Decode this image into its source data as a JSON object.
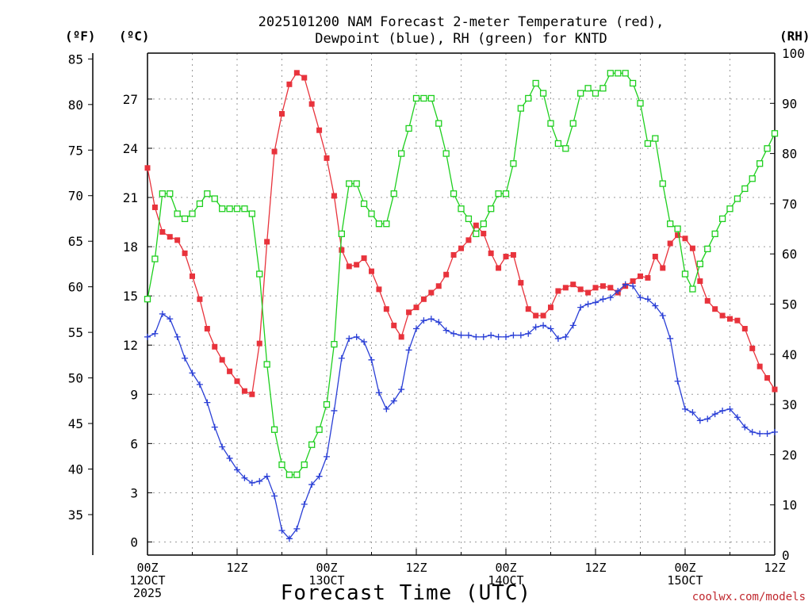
{
  "header": {
    "title_line1": "2025101200 NAM Forecast 2-meter Temperature (red),",
    "title_line2": "Dewpoint (blue), RH (green) for KNTD",
    "unit_f": "(ºF)",
    "unit_c": "(ºC)",
    "unit_rh": "(RH)"
  },
  "footer": {
    "xlabel": "Forecast Time (UTC)",
    "credit": "coolwx.com/models"
  },
  "colors": {
    "temperature": "#e8333c",
    "dewpoint": "#2a3fd6",
    "rh": "#1ecf1e",
    "grid": "#9a9a9a"
  },
  "chart_data": {
    "type": "line",
    "x": [
      0,
      1,
      2,
      3,
      4,
      5,
      6,
      7,
      8,
      9,
      10,
      11,
      12,
      13,
      14,
      15,
      16,
      17,
      18,
      19,
      20,
      21,
      22,
      23,
      24,
      25,
      26,
      27,
      28,
      29,
      30,
      31,
      32,
      33,
      34,
      35,
      36,
      37,
      38,
      39,
      40,
      41,
      42,
      43,
      44,
      45,
      46,
      47,
      48,
      49,
      50,
      51,
      52,
      53,
      54,
      55,
      56,
      57,
      58,
      59,
      60,
      61,
      62,
      63,
      64,
      65,
      66,
      67,
      68,
      69,
      70,
      71,
      72,
      73,
      74,
      75,
      76,
      77,
      78,
      79,
      80,
      81,
      82,
      83,
      84
    ],
    "xlim": [
      0,
      84
    ],
    "x_ticks": [
      {
        "x": 0,
        "line1": "00Z",
        "line2": "12OCT",
        "line3": "2025"
      },
      {
        "x": 12,
        "line1": "12Z",
        "line2": "",
        "line3": ""
      },
      {
        "x": 24,
        "line1": "00Z",
        "line2": "13OCT",
        "line3": ""
      },
      {
        "x": 36,
        "line1": "12Z",
        "line2": "",
        "line3": ""
      },
      {
        "x": 48,
        "line1": "00Z",
        "line2": "14OCT",
        "line3": ""
      },
      {
        "x": 60,
        "line1": "12Z",
        "line2": "",
        "line3": ""
      },
      {
        "x": 72,
        "line1": "00Z",
        "line2": "15OCT",
        "line3": ""
      },
      {
        "x": 84,
        "line1": "12Z",
        "line2": "",
        "line3": ""
      }
    ],
    "ylim_c": [
      -0.8,
      29.8
    ],
    "yticks_c": [
      0,
      3,
      6,
      9,
      12,
      15,
      18,
      21,
      24,
      27
    ],
    "ylim_f": [
      30.56,
      85.64
    ],
    "yticks_f": [
      35,
      40,
      45,
      50,
      55,
      60,
      65,
      70,
      75,
      80,
      85
    ],
    "ylim_rh": [
      0,
      100
    ],
    "yticks_rh": [
      0,
      10,
      20,
      30,
      40,
      50,
      60,
      70,
      80,
      90,
      100
    ],
    "grid": true,
    "series": [
      {
        "key": "temperature",
        "axis": "c",
        "marker": "filled-square",
        "values": [
          22.8,
          20.4,
          18.9,
          18.6,
          18.4,
          17.6,
          16.2,
          14.8,
          13.0,
          11.9,
          11.1,
          10.4,
          9.8,
          9.2,
          9.0,
          12.1,
          18.3,
          23.8,
          26.1,
          27.9,
          28.6,
          28.3,
          26.7,
          25.1,
          23.4,
          21.1,
          17.8,
          16.8,
          16.9,
          17.3,
          16.5,
          15.4,
          14.2,
          13.2,
          12.5,
          14.0,
          14.3,
          14.8,
          15.2,
          15.6,
          16.3,
          17.5,
          17.9,
          18.4,
          19.3,
          18.8,
          17.6,
          16.7,
          17.4,
          17.5,
          15.8,
          14.2,
          13.8,
          13.8,
          14.3,
          15.3,
          15.5,
          15.7,
          15.4,
          15.2,
          15.5,
          15.6,
          15.5,
          15.2,
          15.6,
          15.9,
          16.2,
          16.1,
          17.4,
          16.7,
          18.2,
          18.7,
          18.5,
          17.9,
          15.9,
          14.7,
          14.2,
          13.8,
          13.6,
          13.5,
          13.0,
          11.8,
          10.7,
          10.0,
          9.3
        ]
      },
      {
        "key": "dewpoint",
        "axis": "c",
        "marker": "plus",
        "values": [
          12.5,
          12.7,
          13.9,
          13.6,
          12.5,
          11.2,
          10.3,
          9.6,
          8.5,
          7.0,
          5.8,
          5.1,
          4.4,
          3.9,
          3.6,
          3.7,
          4.0,
          2.8,
          0.7,
          0.2,
          0.8,
          2.3,
          3.5,
          4.0,
          5.2,
          8.0,
          11.2,
          12.4,
          12.5,
          12.2,
          11.1,
          9.1,
          8.1,
          8.6,
          9.3,
          11.7,
          13.0,
          13.5,
          13.6,
          13.4,
          12.9,
          12.7,
          12.6,
          12.6,
          12.5,
          12.5,
          12.6,
          12.5,
          12.5,
          12.6,
          12.6,
          12.7,
          13.1,
          13.2,
          13.0,
          12.4,
          12.5,
          13.2,
          14.3,
          14.5,
          14.6,
          14.8,
          14.9,
          15.3,
          15.7,
          15.6,
          14.9,
          14.8,
          14.4,
          13.8,
          12.4,
          9.8,
          8.1,
          7.9,
          7.4,
          7.5,
          7.8,
          8.0,
          8.1,
          7.6,
          7.0,
          6.7,
          6.6,
          6.6,
          6.7
        ]
      },
      {
        "key": "rh",
        "axis": "rh",
        "marker": "open-square",
        "values": [
          51,
          59,
          72,
          72,
          68,
          67,
          68,
          70,
          72,
          71,
          69,
          69,
          69,
          69,
          68,
          56,
          38,
          25,
          18,
          16,
          16,
          18,
          22,
          25,
          30,
          42,
          64,
          74,
          74,
          70,
          68,
          66,
          66,
          72,
          80,
          85,
          91,
          91,
          91,
          86,
          80,
          72,
          69,
          67,
          64,
          66,
          69,
          72,
          72,
          78,
          89,
          91,
          94,
          92,
          86,
          82,
          81,
          86,
          92,
          93,
          92,
          93,
          96,
          96,
          96,
          94,
          90,
          82,
          83,
          74,
          66,
          65,
          56,
          53,
          58,
          61,
          64,
          67,
          69,
          71,
          73,
          75,
          78,
          81,
          84
        ]
      }
    ]
  }
}
